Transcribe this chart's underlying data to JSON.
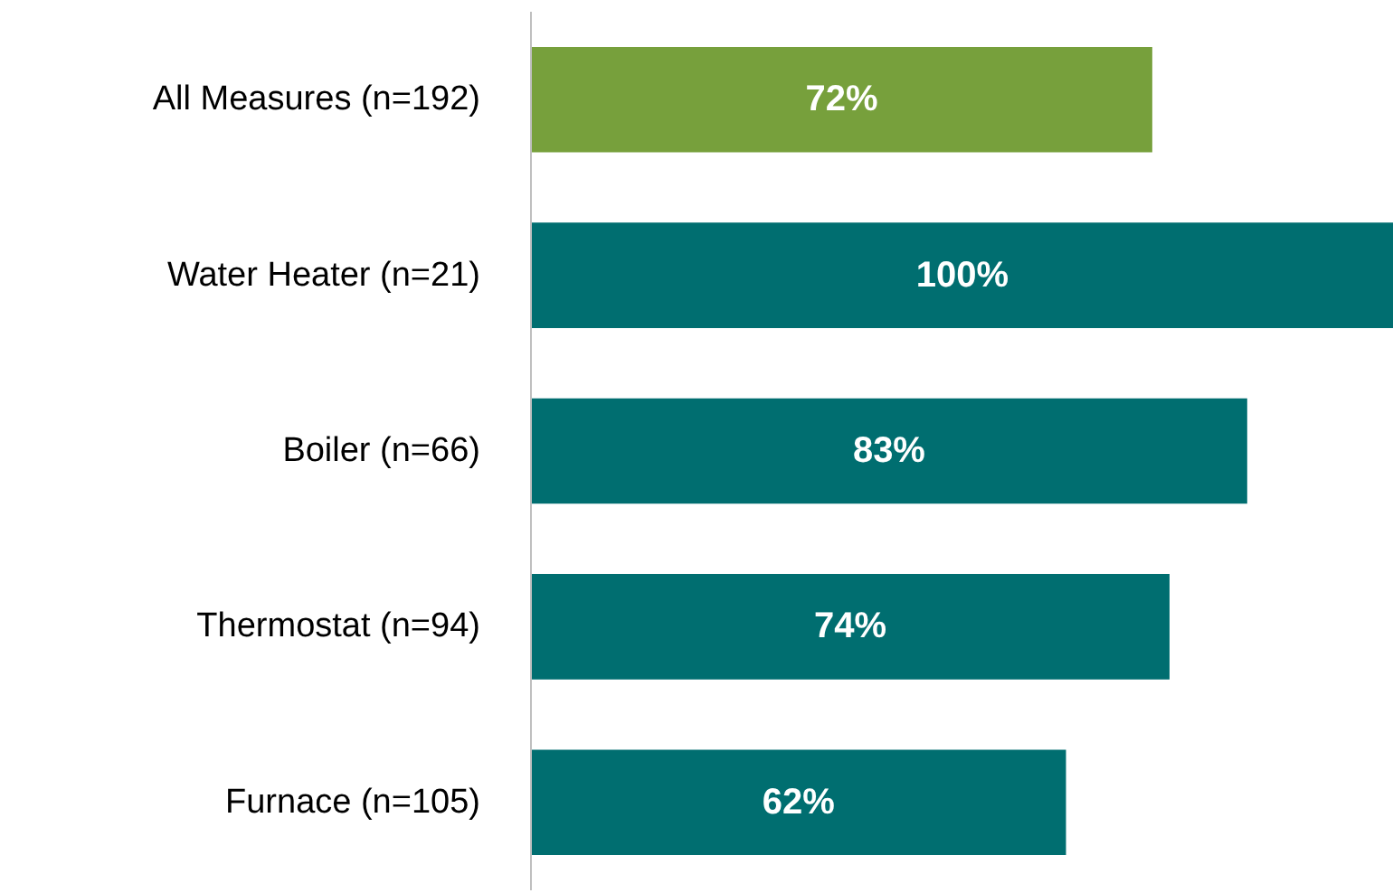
{
  "chart_data": {
    "type": "bar",
    "orientation": "horizontal",
    "categories": [
      "All Measures (n=192)",
      "Water Heater (n=21)",
      "Boiler (n=66)",
      "Thermostat (n=94)",
      "Furnace (n=105)"
    ],
    "values": [
      72,
      100,
      83,
      74,
      62
    ],
    "value_labels": [
      "72%",
      "100%",
      "83%",
      "74%",
      "62%"
    ],
    "colors": [
      "#77a03c",
      "#006e70",
      "#006e70",
      "#006e70",
      "#006e70"
    ],
    "xlim": [
      0,
      100
    ],
    "grid": false,
    "tick_labels": "y"
  }
}
